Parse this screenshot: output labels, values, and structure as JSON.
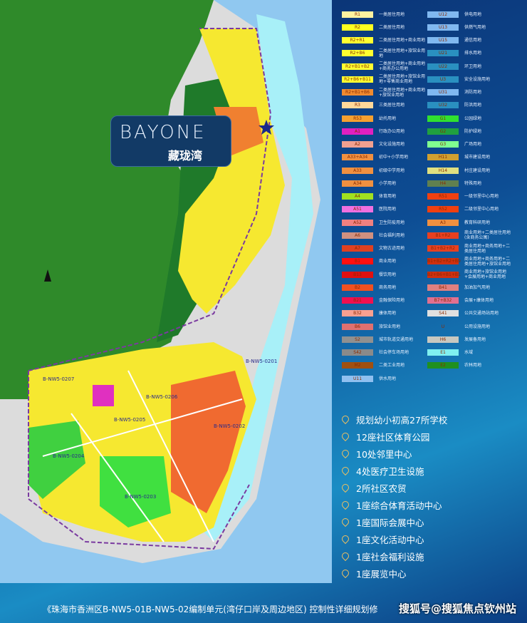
{
  "logo": {
    "en": "BAYONE",
    "cn": "藏珑湾"
  },
  "map_labels": [
    "B-NW5-0201",
    "B-NW5-0202",
    "B-NW5-0203",
    "B-NW5-0204",
    "B-NW5-0205",
    "B-NW5-0206",
    "B-NW5-0207"
  ],
  "legend_left": [
    {
      "code": "R1",
      "label": "一类居住用地",
      "color": "#fff2a0"
    },
    {
      "code": "R2",
      "label": "二类居住用地",
      "color": "#ffff20"
    },
    {
      "code": "R2+R1",
      "label": "二类居住用地+商业用地",
      "color": "#ffff30"
    },
    {
      "code": "R2+B6",
      "label": "二类居住用地+旅馆业用地",
      "color": "#ffff30"
    },
    {
      "code": "R2+B1+B2",
      "label": "二类居住用地+商业用地+商务办公用地",
      "color": "#ffff30"
    },
    {
      "code": "R2+B6+B11",
      "label": "二类居住用地+旅馆业用地+零售商业用地",
      "color": "#ffff30"
    },
    {
      "code": "R2+B1+B6",
      "label": "二类居住用地+商业用地+旅馆业用地",
      "color": "#f08a30"
    },
    {
      "code": "R3",
      "label": "三类居住用地",
      "color": "#ffd89a"
    },
    {
      "code": "R53",
      "label": "幼托用地",
      "color": "#f5a030"
    },
    {
      "code": "A1",
      "label": "行政办公用地",
      "color": "#e020c0"
    },
    {
      "code": "A2",
      "label": "文化设施用地",
      "color": "#f0a090"
    },
    {
      "code": "A33+A34",
      "label": "初中+小学用地",
      "color": "#f09040"
    },
    {
      "code": "A33",
      "label": "初级中学用地",
      "color": "#f09040"
    },
    {
      "code": "A34",
      "label": "小学用地",
      "color": "#f09040"
    },
    {
      "code": "A4",
      "label": "体育用地",
      "color": "#a0e020"
    },
    {
      "code": "A51",
      "label": "医院用地",
      "color": "#f070e0"
    },
    {
      "code": "A52",
      "label": "卫生防疫用地",
      "color": "#f08080"
    },
    {
      "code": "A6",
      "label": "社会福利用地",
      "color": "#d09080"
    },
    {
      "code": "A7",
      "label": "文物古迹用地",
      "color": "#e04020"
    },
    {
      "code": "B1",
      "label": "商业用地",
      "color": "#ff1010"
    },
    {
      "code": "B13",
      "label": "餐饮用地",
      "color": "#e01010"
    },
    {
      "code": "B2",
      "label": "商务用地",
      "color": "#f05020"
    },
    {
      "code": "B21",
      "label": "金融保险用地",
      "color": "#f01050"
    },
    {
      "code": "B32",
      "label": "康体用地",
      "color": "#f8a090"
    },
    {
      "code": "B6",
      "label": "旅馆业用地",
      "color": "#e07070"
    },
    {
      "code": "S2",
      "label": "城市轨道交通用地",
      "color": "#909090"
    },
    {
      "code": "S42",
      "label": "社会停车场用地",
      "color": "#8a8a8a"
    },
    {
      "code": "M2",
      "label": "二类工业用地",
      "color": "#a05010"
    },
    {
      "code": "U11",
      "label": "供水用地",
      "color": "#90c0f0"
    }
  ],
  "legend_right": [
    {
      "code": "U12",
      "label": "供电用地",
      "color": "#80b8f0"
    },
    {
      "code": "U13",
      "label": "供燃气用地",
      "color": "#80b8f0"
    },
    {
      "code": "U15",
      "label": "通信用地",
      "color": "#80b8f0"
    },
    {
      "code": "U21",
      "label": "排水用地",
      "color": "#2a90c0"
    },
    {
      "code": "U22",
      "label": "环卫用地",
      "color": "#2a90c0"
    },
    {
      "code": "U3",
      "label": "安全设施用地",
      "color": "#2a90c0"
    },
    {
      "code": "U31",
      "label": "消防用地",
      "color": "#80b8f0"
    },
    {
      "code": "U32",
      "label": "防洪用地",
      "color": "#2a90c0"
    },
    {
      "code": "G1",
      "label": "公园绿地",
      "color": "#30e030"
    },
    {
      "code": "G2",
      "label": "防护绿地",
      "color": "#20a040"
    },
    {
      "code": "G3",
      "label": "广场用地",
      "color": "#80ff90"
    },
    {
      "code": "H11",
      "label": "城市建设用地",
      "color": "#d0a030"
    },
    {
      "code": "H14",
      "label": "村庄建设用地",
      "color": "#e0e080"
    },
    {
      "code": "H4",
      "label": "特殊用地",
      "color": "#608050"
    },
    {
      "code": "R51",
      "label": "一级邻里中心用地",
      "color": "#f04010"
    },
    {
      "code": "R52",
      "label": "二级邻里中心用地",
      "color": "#f04010"
    },
    {
      "code": "A3",
      "label": "教育科研用地",
      "color": "#f09040"
    },
    {
      "code": "B1+R2",
      "label": "商业用地+二类居住用地(含商务公寓)",
      "color": "#e84020"
    },
    {
      "code": "B1+B2+R2",
      "label": "商业用地+商务用地+二类居住用地",
      "color": "#e84020"
    },
    {
      "code": "B1+B2+R2+B9",
      "label": "商业用地+商务用地+二类居住用地+旅馆业用地",
      "color": "#d03010"
    },
    {
      "code": "B2+B6+B1+B1",
      "label": "商业用地+旅馆业用地+会展用地+商业用地",
      "color": "#d03010"
    },
    {
      "code": "B41",
      "label": "加油加气用地",
      "color": "#e08080"
    },
    {
      "code": "B7+B32",
      "label": "会展+康体用地",
      "color": "#e07090"
    },
    {
      "code": "S41",
      "label": "公共交通场站用地",
      "color": "#e0e0e0"
    },
    {
      "code": "U",
      "label": "公用设施用地",
      "color": "transparent"
    },
    {
      "code": "H6",
      "label": "发展备用地",
      "color": "#c8c8c0"
    },
    {
      "code": "E1",
      "label": "水域",
      "color": "#80f0f0"
    },
    {
      "code": "E2",
      "label": "农林用地",
      "color": "#209020"
    }
  ],
  "bullets": [
    "规划幼小初高27所学校",
    "12座社区体育公园",
    "10处邻里中心",
    "4处医疗卫生设施",
    "2所社区农贸",
    "1座综合体育活动中心",
    "1座国际会展中心",
    "1座文化活动中心",
    "1座社会福利设施",
    "1座展览中心"
  ],
  "caption": "《珠海市香洲区B-NW5-01B-NW5-02编制单元(湾仔口岸及周边地区) 控制性详细规划修",
  "watermark": "搜狐号@搜狐焦点钦州站"
}
